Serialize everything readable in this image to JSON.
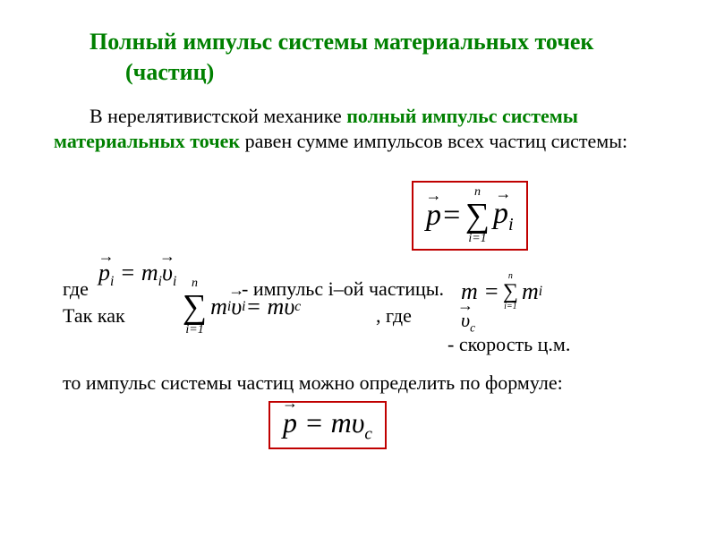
{
  "title": "Полный импульс системы материальных точек (частиц)",
  "para1_pre": "В нерелятивистской механике ",
  "para1_green": "полный импульс системы  материальных точек",
  "para1_post": "  равен сумме импульсов всех частиц системы:",
  "formula_main": {
    "lhs": "p",
    "eq": " = ",
    "sum_upper": "n",
    "sum_lower": "i=1",
    "rhs": "p",
    "rhs_sub": "i"
  },
  "gde": "где",
  "pi_formula": "p",
  "pi_sub": "i",
  "pi_eq_rhs": " = m",
  "pi_m_sub": "i",
  "pi_v": "υ",
  "pi_v_sub": "i",
  "impuls_i_text": "- импульс i–ой частицы.",
  "tak_kak": "Так как",
  "sum_mi": {
    "upper": "n",
    "lower": "i=1",
    "body1": "m",
    "body1_sub": "i",
    "body2": "υ",
    "body2_sub": "i",
    "eq": " = mυ",
    "eq_sub": "c"
  },
  "comma_gde": ",    где",
  "m_sum": {
    "lhs": "m = ",
    "upper": "n",
    "lower": "i=1",
    "rhs": "m",
    "rhs_sub": "i"
  },
  "vc": "υ",
  "vc_sub": "c",
  "speed_cm": "- скорость ц.м.",
  "final_line": "то импульс системы частиц можно определить по формуле:",
  "formula_final": {
    "lhs": "p",
    "eq": " = mυ",
    "sub": "c"
  },
  "colors": {
    "title": "#008000",
    "box_border": "#c00000",
    "text": "#000000"
  },
  "fonts": {
    "title_size": 26,
    "body_size": 22,
    "formula_size": 34
  }
}
